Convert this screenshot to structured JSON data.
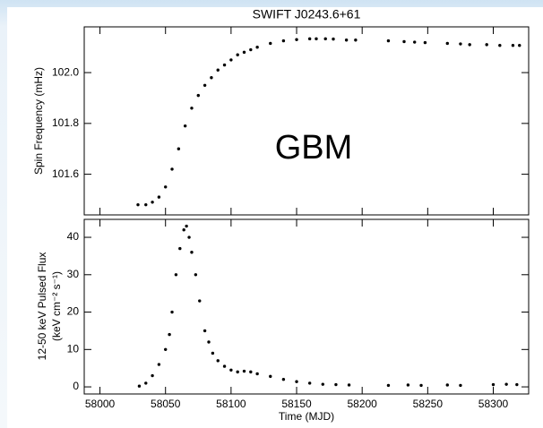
{
  "chart_data": [
    {
      "type": "scatter",
      "title": "SWIFT J0243.6+61",
      "ylabel": "Spin Frequency (mHz)",
      "annotation": "GBM",
      "x": [
        58029,
        58035,
        58040,
        58045,
        58050,
        58055,
        58060,
        58065,
        58070,
        58075,
        58080,
        58085,
        58090,
        58095,
        58100,
        58105,
        58110,
        58115,
        58120,
        58130,
        58140,
        58150,
        58160,
        58165,
        58172,
        58178,
        58188,
        58195,
        58220,
        58232,
        58240,
        58248,
        58265,
        58275,
        58282,
        58295,
        58305,
        58315,
        58320
      ],
      "values": [
        101.48,
        101.48,
        101.49,
        101.51,
        101.55,
        101.62,
        101.7,
        101.79,
        101.86,
        101.91,
        101.95,
        101.98,
        102.01,
        102.03,
        102.05,
        102.07,
        102.08,
        102.09,
        102.1,
        102.115,
        102.125,
        102.13,
        102.133,
        102.133,
        102.133,
        102.132,
        102.128,
        102.128,
        102.125,
        102.122,
        102.12,
        102.118,
        102.115,
        102.113,
        102.11,
        102.11,
        102.107,
        102.107,
        102.107
      ],
      "color": "#000000",
      "xlim": [
        57988,
        58327
      ],
      "ylim": [
        101.44,
        102.18
      ],
      "yticks": [
        {
          "value": 101.6,
          "label": "101.6"
        },
        {
          "value": 101.8,
          "label": "101.8"
        },
        {
          "value": 102.0,
          "label": "102.0"
        }
      ]
    },
    {
      "type": "scatter",
      "xlabel": "Time (MJD)",
      "ylabel": [
        "12-50 keV Pulsed Flux",
        "(keV cm⁻² s⁻¹)"
      ],
      "x": [
        58030,
        58035,
        58040,
        58045,
        58050,
        58053,
        58055,
        58058,
        58061,
        58064,
        58066,
        58068,
        58070,
        58073,
        58076,
        58080,
        58083,
        58086,
        58090,
        58095,
        58100,
        58105,
        58110,
        58115,
        58120,
        58130,
        58140,
        58150,
        58160,
        58170,
        58180,
        58190,
        58220,
        58235,
        58245,
        58265,
        58275,
        58300,
        58310,
        58318
      ],
      "values": [
        0.2,
        1,
        3,
        6,
        10,
        14,
        20,
        30,
        37,
        42,
        43,
        40,
        36,
        30,
        23,
        15,
        12,
        9,
        7,
        5.5,
        4.5,
        4,
        4.2,
        4,
        3.5,
        2.8,
        2,
        1.4,
        1,
        0.7,
        0.6,
        0.5,
        0.4,
        0.5,
        0.4,
        0.5,
        0.4,
        0.6,
        0.7,
        0.6
      ],
      "color": "#000000",
      "xlim": [
        57988,
        58327
      ],
      "ylim": [
        -1.9,
        44.8
      ],
      "xticks": [
        58000,
        58050,
        58100,
        58150,
        58200,
        58250,
        58300
      ],
      "yticks": [
        0,
        10,
        20,
        30,
        40
      ]
    }
  ]
}
